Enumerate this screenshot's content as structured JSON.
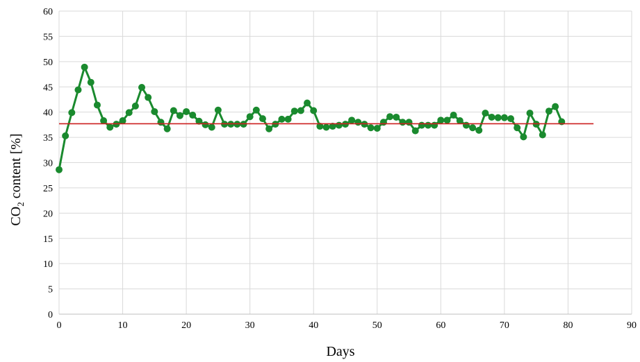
{
  "chart_data": {
    "type": "line",
    "xlabel": "Days",
    "ylabel": {
      "prefix": "CO",
      "subscript": "2",
      "suffix": " content [%]"
    },
    "xlim": [
      0,
      90
    ],
    "ylim": [
      0,
      60
    ],
    "x_ticks": [
      0,
      10,
      20,
      30,
      40,
      50,
      60,
      70,
      80,
      90
    ],
    "y_ticks": [
      0,
      5,
      10,
      15,
      20,
      25,
      30,
      35,
      40,
      45,
      50,
      55,
      60
    ],
    "grid": true,
    "legend": "none",
    "series": [
      {
        "color": "#1a8a2e",
        "marker": "circle",
        "x": [
          0,
          1,
          2,
          3,
          4,
          5,
          6,
          7,
          8,
          9,
          10,
          11,
          12,
          13,
          14,
          15,
          16,
          17,
          18,
          19,
          20,
          21,
          22,
          23,
          24,
          25,
          26,
          27,
          28,
          29,
          30,
          31,
          32,
          33,
          34,
          35,
          36,
          37,
          38,
          39,
          40,
          41,
          42,
          43,
          44,
          45,
          46,
          47,
          48,
          49,
          50,
          51,
          52,
          53,
          54,
          55,
          56,
          57,
          58,
          59,
          60,
          61,
          62,
          63,
          64,
          65,
          66,
          67,
          68,
          69,
          70,
          71,
          72,
          73,
          74,
          75,
          76,
          77,
          78,
          79
        ],
        "y": [
          28.6,
          35.3,
          39.9,
          44.4,
          48.9,
          45.9,
          41.4,
          38.3,
          37.0,
          37.6,
          38.3,
          39.9,
          41.2,
          44.9,
          42.9,
          40.1,
          38.0,
          36.7,
          40.3,
          39.3,
          40.1,
          39.4,
          38.2,
          37.5,
          37.0,
          40.4,
          37.6,
          37.6,
          37.6,
          37.6,
          39.1,
          40.4,
          38.7,
          36.7,
          37.6,
          38.6,
          38.6,
          40.2,
          40.3,
          41.8,
          40.3,
          37.2,
          37.0,
          37.2,
          37.4,
          37.6,
          38.4,
          38.0,
          37.6,
          36.9,
          36.8,
          38.0,
          39.1,
          39.0,
          38.0,
          38.0,
          36.3,
          37.4,
          37.4,
          37.4,
          38.4,
          38.4,
          39.4,
          38.3,
          37.4,
          36.9,
          36.4,
          39.8,
          39.0,
          38.9,
          38.9,
          38.7,
          36.9,
          35.1,
          39.8,
          37.6,
          35.5,
          40.2,
          41.1,
          38.1
        ]
      },
      {
        "color": "#cc1f1f",
        "marker": "none",
        "x": [
          0,
          84
        ],
        "y": [
          37.7,
          37.7
        ]
      }
    ]
  }
}
